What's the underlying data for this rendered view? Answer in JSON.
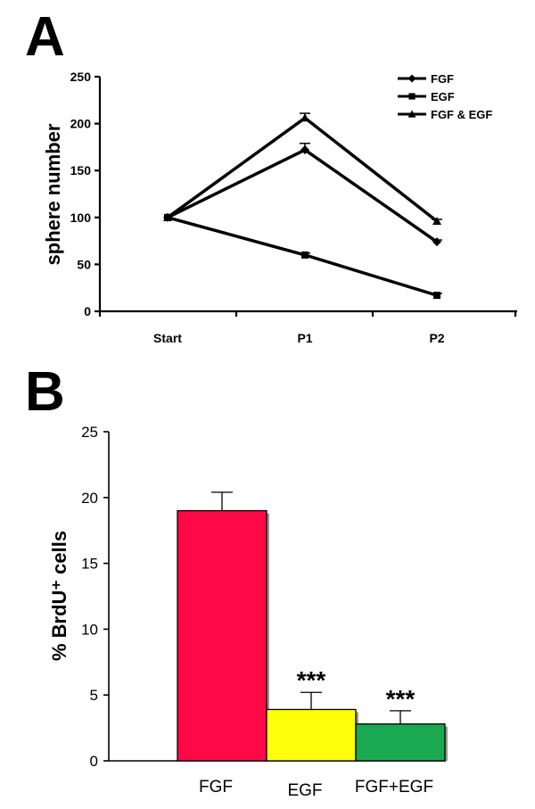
{
  "panels": {
    "a_letter": "A",
    "b_letter": "B"
  },
  "chart_data": [
    {
      "type": "line",
      "ylabel": "sphere number",
      "xlabel": "",
      "categories": [
        "Start",
        "P1",
        "P2"
      ],
      "ylim": [
        0,
        250
      ],
      "yticks": [
        0,
        50,
        100,
        150,
        200,
        250
      ],
      "legend_position": "top-right",
      "grid": false,
      "series": [
        {
          "name": "FGF",
          "marker": "diamond",
          "values": [
            100,
            172,
            74
          ],
          "errors": [
            0,
            7,
            2
          ]
        },
        {
          "name": "EGF",
          "marker": "square",
          "values": [
            100,
            60,
            17
          ],
          "errors": [
            0,
            2,
            2
          ]
        },
        {
          "name": "FGF & EGF",
          "marker": "triangle",
          "values": [
            100,
            206,
            96
          ],
          "errors": [
            0,
            5,
            2
          ]
        }
      ],
      "color": "#000000"
    },
    {
      "type": "bar",
      "ylabel": "% BrdU⁺ cells",
      "xlabel": "",
      "categories": [
        "FGF",
        "EGF",
        "FGF+EGF"
      ],
      "values": [
        19,
        3.9,
        2.8
      ],
      "errors": [
        1.4,
        1.3,
        1.0
      ],
      "annotations": [
        "",
        "***",
        "***"
      ],
      "ylim": [
        0,
        25
      ],
      "yticks": [
        0,
        5,
        10,
        15,
        20,
        25
      ],
      "grid": false,
      "colors": [
        "#ff0a46",
        "#ffff0a",
        "#1aa850"
      ]
    }
  ]
}
